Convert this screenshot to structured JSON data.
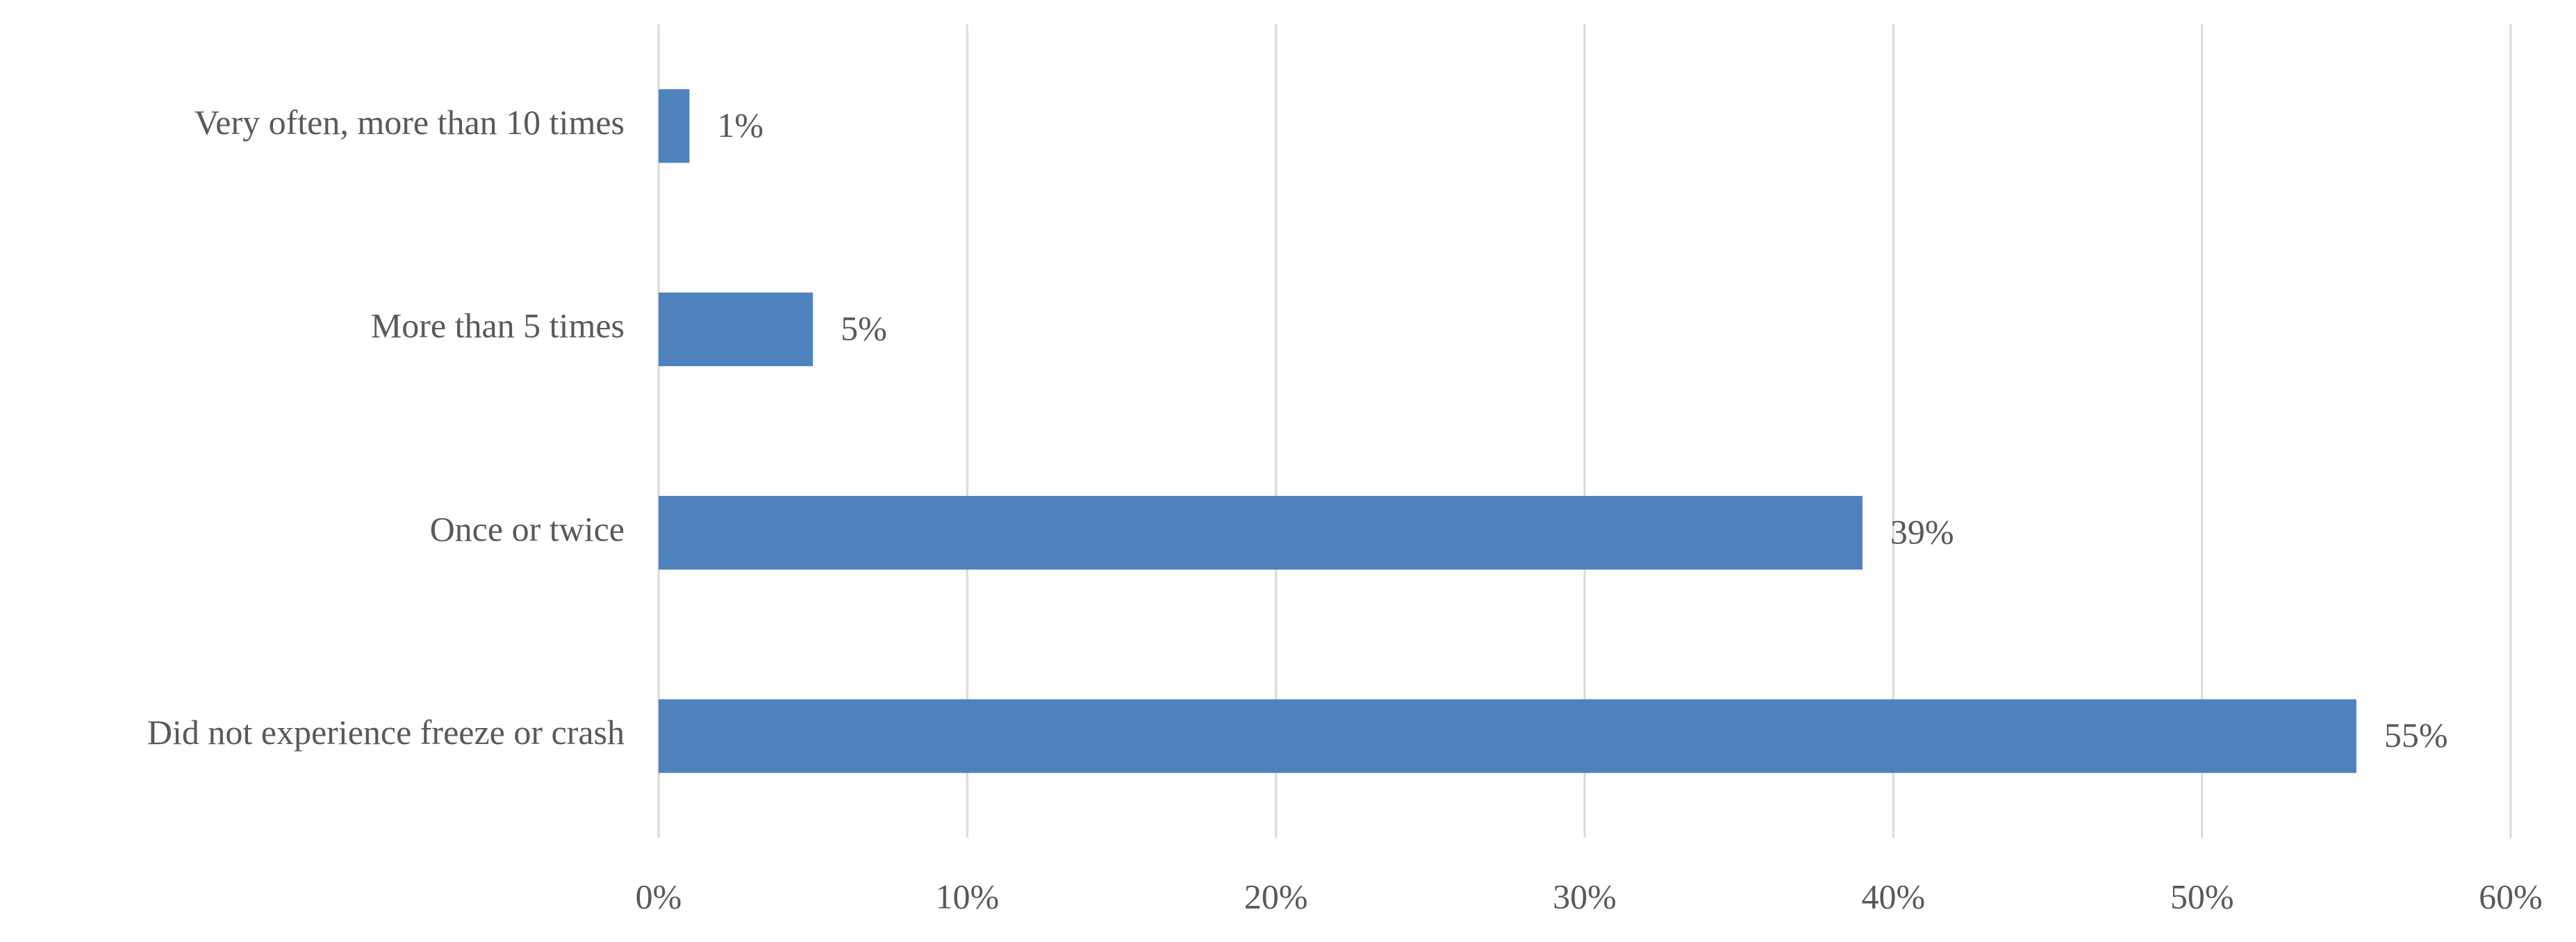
{
  "chart_data": {
    "type": "hbar",
    "categories": [
      "Very often, more than 10 times",
      "More than 5 times",
      "Once or twice",
      "Did not experience freeze or crash"
    ],
    "values": [
      1,
      5,
      39,
      55
    ],
    "value_labels": [
      "1%",
      "5%",
      "39%",
      "55%"
    ],
    "color": "#4f81bd",
    "xlim": [
      0,
      60
    ],
    "xticks": [
      {
        "value": 0,
        "label": "0%"
      },
      {
        "value": 10,
        "label": "10%"
      },
      {
        "value": 20,
        "label": "20%"
      },
      {
        "value": 30,
        "label": "30%"
      },
      {
        "value": 40,
        "label": "40%"
      },
      {
        "value": 50,
        "label": "50%"
      },
      {
        "value": 60,
        "label": "60%"
      }
    ],
    "grid": true
  }
}
